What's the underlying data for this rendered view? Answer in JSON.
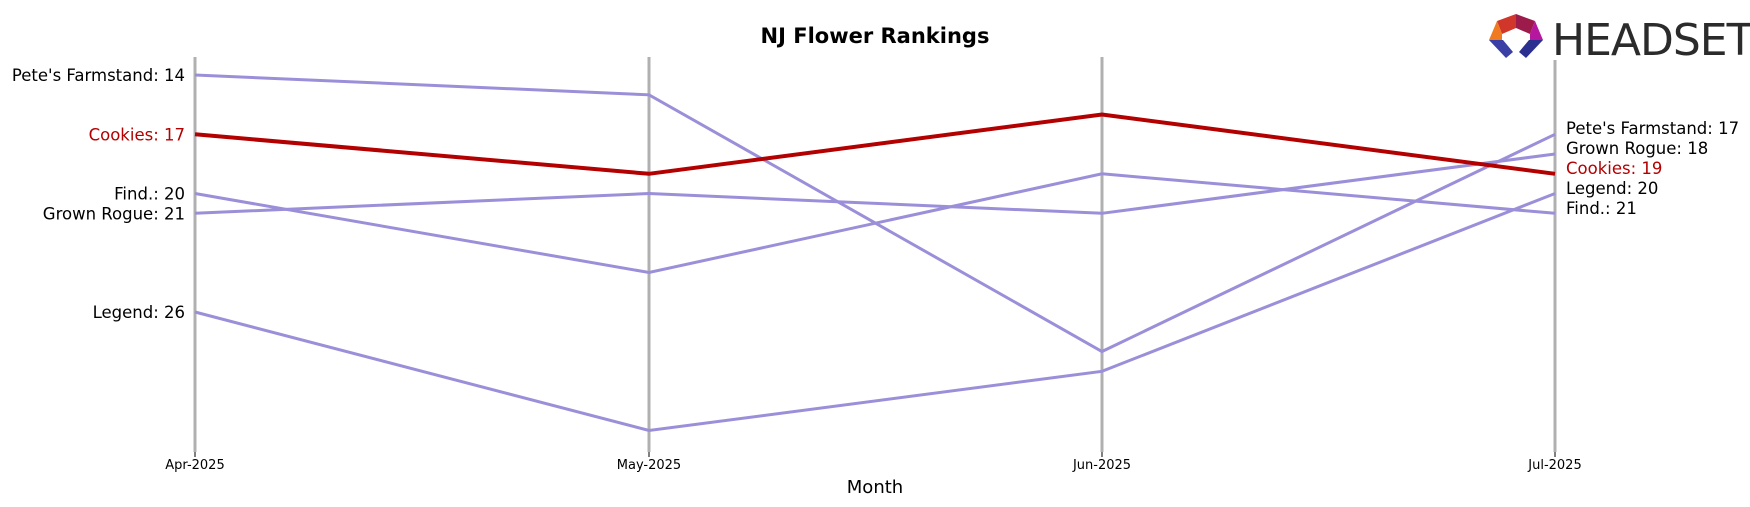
{
  "chart_data": {
    "type": "line",
    "title": "NJ Flower Rankings",
    "xlabel": "Month",
    "ylabel": "",
    "x": [
      "Apr-2025",
      "May-2025",
      "Jun-2025",
      "Jul-2025"
    ],
    "y_inverted": true,
    "y_range_rank": [
      11,
      33
    ],
    "grid": "vertical lines at each month",
    "series": [
      {
        "name": "Pete's Farmstand",
        "values": [
          14,
          15,
          28,
          17
        ],
        "highlight": false
      },
      {
        "name": "Cookies",
        "values": [
          17,
          19,
          16,
          19
        ],
        "highlight": true
      },
      {
        "name": "Find.",
        "values": [
          20,
          24,
          19,
          21
        ],
        "highlight": false
      },
      {
        "name": "Grown Rogue",
        "values": [
          21,
          20,
          21,
          18
        ],
        "highlight": false
      },
      {
        "name": "Legend",
        "values": [
          26,
          32,
          29,
          20
        ],
        "highlight": false
      }
    ],
    "left_labels": [
      "Pete's Farmstand: 14",
      "Cookies: 17",
      "Find.: 20",
      "Grown Rogue: 21",
      "Legend: 26"
    ],
    "right_labels": [
      "Pete's Farmstand: 17",
      "Grown Rogue: 18",
      "Cookies: 19",
      "Legend: 20",
      "Find.: 21"
    ],
    "colors": {
      "default": "#9b8fd9",
      "highlight": "#b30000",
      "axis_line": "#b0b0b0"
    }
  },
  "logo": {
    "text": "HEADSET"
  }
}
